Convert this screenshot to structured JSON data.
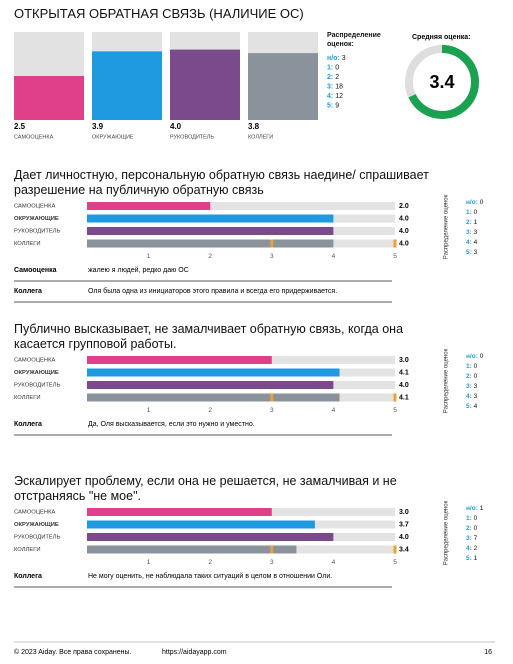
{
  "header": {
    "title": "ОТКРЫТАЯ ОБРАТНАЯ СВЯЗЬ (НАЛИЧИЕ ОС)"
  },
  "chart_data": [
    {
      "type": "column",
      "categories": [
        "САМООЦЕНКА",
        "ОКРУЖАЮЩИЕ",
        "РУКОВОДИТЕЛЬ",
        "КОЛЛЕГИ"
      ],
      "values": [
        2.5,
        3.9,
        4.0,
        3.8
      ],
      "value_labels": [
        "2.5",
        "3.9",
        "4.0",
        "3.8"
      ],
      "colors": [
        "#e0408a",
        "#1e9be0",
        "#7b4a8c",
        "#8a929c"
      ],
      "ylim": [
        0,
        5
      ],
      "distribution": {
        "title": "Распределение оценок:",
        "items": [
          {
            "label": "н/о:",
            "value": 3
          },
          {
            "label": "1:",
            "value": 0
          },
          {
            "label": "2:",
            "value": 2
          },
          {
            "label": "3:",
            "value": 18
          },
          {
            "label": "4:",
            "value": 12
          },
          {
            "label": "5:",
            "value": 9
          }
        ]
      }
    },
    {
      "type": "gauge",
      "title": "Средняя оценка:",
      "value": 3.4,
      "range": [
        0,
        5
      ],
      "color": "#1aa251"
    },
    {
      "type": "hbar",
      "title": "Дает личностную, персональную обратную связь наедине/ спрашивает разрешение на публичную обратную связь",
      "categories": [
        "САМООЦЕНКА",
        "ОКРУЖАЮЩИЕ",
        "РУКОВОДИТЕЛЬ",
        "КОЛЛЕГИ"
      ],
      "values": [
        2.0,
        4.0,
        4.0,
        4.0
      ],
      "value_labels": [
        "2.0",
        "4.0",
        "4.0",
        "4.0"
      ],
      "colors": [
        "#e0408a",
        "#1e9be0",
        "#7b4a8c",
        "#8a929c"
      ],
      "colleague_range": [
        3,
        5
      ],
      "xlim": [
        0,
        5
      ],
      "xticks": [
        1,
        2,
        3,
        4,
        5
      ],
      "distribution": {
        "title": "Распределение оценок",
        "items": [
          {
            "label": "н/о:",
            "value": 0
          },
          {
            "label": "1:",
            "value": 0
          },
          {
            "label": "2:",
            "value": 1
          },
          {
            "label": "3:",
            "value": 3
          },
          {
            "label": "4:",
            "value": 4
          },
          {
            "label": "5:",
            "value": 3
          }
        ]
      },
      "comments": [
        {
          "author": "Самооценка",
          "text": "жалею я людей, редко даю ОС"
        },
        {
          "author": "Коллега",
          "text": "Оля была одна из инициаторов этого правила и всегда его придерживается."
        }
      ]
    },
    {
      "type": "hbar",
      "title": "Публично высказывает, не замалчивает обратную связь, когда она касается групповой работы.",
      "categories": [
        "САМООЦЕНКА",
        "ОКРУЖАЮЩИЕ",
        "РУКОВОДИТЕЛЬ",
        "КОЛЛЕГИ"
      ],
      "values": [
        3.0,
        4.1,
        4.0,
        4.1
      ],
      "value_labels": [
        "3.0",
        "4.1",
        "4.0",
        "4.1"
      ],
      "colors": [
        "#e0408a",
        "#1e9be0",
        "#7b4a8c",
        "#8a929c"
      ],
      "colleague_range": [
        3,
        5
      ],
      "xlim": [
        0,
        5
      ],
      "xticks": [
        1,
        2,
        3,
        4,
        5
      ],
      "distribution": {
        "title": "Распределение оценок",
        "items": [
          {
            "label": "н/о:",
            "value": 0
          },
          {
            "label": "1:",
            "value": 0
          },
          {
            "label": "2:",
            "value": 0
          },
          {
            "label": "3:",
            "value": 3
          },
          {
            "label": "4:",
            "value": 3
          },
          {
            "label": "5:",
            "value": 4
          }
        ]
      },
      "comments": [
        {
          "author": "Коллега",
          "text": "Да, Оля высказывается, если это нужно и уместно."
        }
      ]
    },
    {
      "type": "hbar",
      "title": "Эскалирует проблему, если она не решается, не замалчивая и не отстраняясь \"не мое\".",
      "categories": [
        "САМООЦЕНКА",
        "ОКРУЖАЮЩИЕ",
        "РУКОВОДИТЕЛЬ",
        "КОЛЛЕГИ"
      ],
      "values": [
        3.0,
        3.7,
        4.0,
        3.4
      ],
      "value_labels": [
        "3.0",
        "3.7",
        "4.0",
        "3.4"
      ],
      "colors": [
        "#e0408a",
        "#1e9be0",
        "#7b4a8c",
        "#8a929c"
      ],
      "colleague_range": [
        3,
        5
      ],
      "xlim": [
        0,
        5
      ],
      "xticks": [
        1,
        2,
        3,
        4,
        5
      ],
      "distribution": {
        "title": "Распределение оценок",
        "items": [
          {
            "label": "н/о:",
            "value": 1
          },
          {
            "label": "1:",
            "value": 0
          },
          {
            "label": "2:",
            "value": 0
          },
          {
            "label": "3:",
            "value": 7
          },
          {
            "label": "4:",
            "value": 2
          },
          {
            "label": "5:",
            "value": 1
          }
        ]
      },
      "comments": [
        {
          "author": "Коллега",
          "text": "Не могу оценить, не наблюдала таких ситуаций в целом в отношении Оли."
        }
      ]
    }
  ],
  "footer": {
    "copyright": "© 2023 Aiday. Все права сохранены.",
    "url": "https://aidayapp.com",
    "page": 16
  }
}
